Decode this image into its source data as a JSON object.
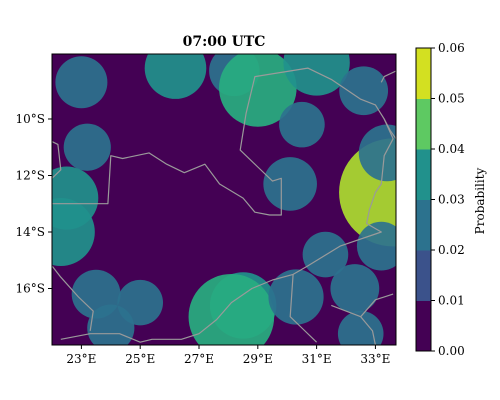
{
  "chart_data": {
    "type": "heatmap",
    "title": "07:00 UTC",
    "x_ticks": [
      "23°E",
      "25°E",
      "27°E",
      "29°E",
      "31°E",
      "33°E"
    ],
    "y_ticks": [
      "10°S",
      "12°S",
      "14°S",
      "16°S"
    ],
    "extent": {
      "lon": [
        22.0,
        33.7
      ],
      "lat": [
        -18.0,
        -7.7
      ]
    },
    "colorbar": {
      "label": "Probability",
      "ticks": [
        "0.00",
        "0.01",
        "0.02",
        "0.03",
        "0.04",
        "0.05",
        "0.06"
      ],
      "levels": [
        0.0,
        0.01,
        0.02,
        0.03,
        0.04,
        0.05,
        0.06
      ],
      "colors": [
        "#440154",
        "#3b528b",
        "#2c728e",
        "#21918c",
        "#28ae80",
        "#5ec962",
        "#addc30",
        "#fde725"
      ]
    },
    "blobs": [
      {
        "lon": 23.0,
        "lat": -8.7,
        "value": 0.015
      },
      {
        "lon": 23.2,
        "lat": -11.0,
        "value": 0.012
      },
      {
        "lon": 22.5,
        "lat": -12.8,
        "value": 0.022
      },
      {
        "lon": 22.3,
        "lat": -14.0,
        "value": 0.025
      },
      {
        "lon": 23.5,
        "lat": -16.2,
        "value": 0.013
      },
      {
        "lon": 25.0,
        "lat": -16.5,
        "value": 0.011
      },
      {
        "lon": 24.0,
        "lat": -17.4,
        "value": 0.012
      },
      {
        "lon": 26.2,
        "lat": -8.2,
        "value": 0.021
      },
      {
        "lon": 28.2,
        "lat": -8.3,
        "value": 0.014
      },
      {
        "lon": 29.0,
        "lat": -8.9,
        "value": 0.031
      },
      {
        "lon": 31.0,
        "lat": -8.0,
        "value": 0.024
      },
      {
        "lon": 32.6,
        "lat": -9.0,
        "value": 0.013
      },
      {
        "lon": 30.5,
        "lat": -10.2,
        "value": 0.011
      },
      {
        "lon": 30.1,
        "lat": -12.3,
        "value": 0.016
      },
      {
        "lon": 33.6,
        "lat": -12.6,
        "value": 0.05
      },
      {
        "lon": 33.4,
        "lat": -11.2,
        "value": 0.018
      },
      {
        "lon": 33.2,
        "lat": -14.5,
        "value": 0.013
      },
      {
        "lon": 31.3,
        "lat": -14.8,
        "value": 0.011
      },
      {
        "lon": 28.5,
        "lat": -16.6,
        "value": 0.024
      },
      {
        "lon": 28.1,
        "lat": -17.0,
        "value": 0.036
      },
      {
        "lon": 30.3,
        "lat": -16.3,
        "value": 0.017
      },
      {
        "lon": 32.3,
        "lat": -16.0,
        "value": 0.013
      },
      {
        "lon": 32.5,
        "lat": -17.6,
        "value": 0.011
      }
    ],
    "borders": [
      [
        [
          22.0,
          -13.0
        ],
        [
          23.9,
          -13.0
        ],
        [
          24.0,
          -11.3
        ],
        [
          24.4,
          -11.4
        ],
        [
          25.3,
          -11.2
        ],
        [
          25.9,
          -11.6
        ],
        [
          26.5,
          -11.9
        ],
        [
          27.2,
          -11.6
        ],
        [
          27.7,
          -12.3
        ],
        [
          28.5,
          -12.8
        ],
        [
          28.9,
          -13.3
        ],
        [
          29.4,
          -13.4
        ],
        [
          29.8,
          -13.4
        ],
        [
          29.8,
          -12.1
        ],
        [
          29.5,
          -12.2
        ],
        [
          29.0,
          -11.7
        ],
        [
          28.4,
          -11.1
        ],
        [
          28.6,
          -9.8
        ],
        [
          28.9,
          -8.5
        ],
        [
          30.7,
          -8.2
        ],
        [
          31.5,
          -8.6
        ],
        [
          32.5,
          -9.3
        ],
        [
          33.0,
          -9.5
        ],
        [
          33.3,
          -10.0
        ],
        [
          33.6,
          -10.7
        ],
        [
          33.3,
          -11.3
        ],
        [
          33.2,
          -12.3
        ],
        [
          33.0,
          -12.6
        ],
        [
          32.8,
          -13.2
        ],
        [
          32.7,
          -13.7
        ],
        [
          33.2,
          -14.0
        ],
        [
          31.8,
          -14.5
        ],
        [
          30.7,
          -15.2
        ],
        [
          30.2,
          -15.5
        ],
        [
          29.5,
          -15.7
        ],
        [
          28.8,
          -16.0
        ],
        [
          28.1,
          -16.5
        ],
        [
          27.6,
          -17.1
        ],
        [
          27.0,
          -17.6
        ],
        [
          26.4,
          -17.8
        ],
        [
          25.4,
          -17.8
        ],
        [
          25.0,
          -17.9
        ],
        [
          24.3,
          -17.6
        ],
        [
          23.3,
          -17.6
        ],
        [
          22.3,
          -17.8
        ]
      ],
      [
        [
          22.0,
          -10.8
        ],
        [
          22.2,
          -10.9
        ],
        [
          22.3,
          -11.8
        ],
        [
          22.0,
          -12.1
        ]
      ],
      [
        [
          23.3,
          -17.5
        ],
        [
          23.4,
          -16.8
        ],
        [
          22.9,
          -16.3
        ],
        [
          22.3,
          -15.6
        ],
        [
          22.0,
          -15.2
        ]
      ],
      [
        [
          30.2,
          -15.5
        ],
        [
          30.1,
          -17.0
        ],
        [
          30.5,
          -17.4
        ],
        [
          31.0,
          -17.9
        ]
      ],
      [
        [
          33.7,
          -8.3
        ],
        [
          33.3,
          -8.5
        ],
        [
          33.2,
          -8.7
        ]
      ],
      [
        [
          33.7,
          -10.7
        ],
        [
          33.5,
          -10.4
        ],
        [
          33.3,
          -10.0
        ]
      ],
      [
        [
          33.6,
          -16.2
        ],
        [
          33.0,
          -16.4
        ],
        [
          32.5,
          -17.0
        ],
        [
          32.9,
          -17.5
        ],
        [
          33.0,
          -18.0
        ]
      ],
      [
        [
          31.5,
          -16.6
        ],
        [
          32.0,
          -16.8
        ],
        [
          32.5,
          -17.0
        ]
      ]
    ]
  }
}
